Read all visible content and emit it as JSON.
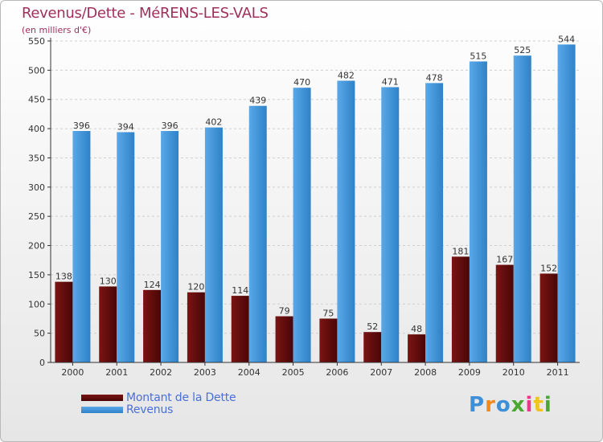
{
  "title": "Revenus/Dette - MéRENS-LES-VALS",
  "subtitle": "(en milliers d'€)",
  "logo": {
    "text": "Proxiti",
    "letter_colors": [
      "#3d8fd8",
      "#f08a1e",
      "#3d8fd8",
      "#4aa832",
      "#e83a8a",
      "#f0c41e",
      "#4aa832"
    ]
  },
  "colors": {
    "debt": "#7a1414",
    "debt_dark": "#4a0606",
    "revenue": "#5aa8e8",
    "revenue_dark": "#2e82c8",
    "title": "#a0305a",
    "legend_text": "#4a6fd6"
  },
  "chart_data": {
    "type": "bar",
    "title": "Revenus/Dette - MéRENS-LES-VALS",
    "subtitle": "(en milliers d'€)",
    "categories": [
      "2000",
      "2001",
      "2002",
      "2003",
      "2004",
      "2005",
      "2006",
      "2007",
      "2008",
      "2009",
      "2010",
      "2011"
    ],
    "series": [
      {
        "name": "Montant de la Dette",
        "values": [
          138,
          130,
          124,
          120,
          114,
          79,
          75,
          52,
          48,
          181,
          167,
          152
        ]
      },
      {
        "name": "Revenus",
        "values": [
          396,
          394,
          396,
          402,
          439,
          470,
          482,
          471,
          478,
          515,
          525,
          544
        ]
      }
    ],
    "ylim": [
      0,
      550
    ],
    "yticks": [
      0,
      50,
      100,
      150,
      200,
      250,
      300,
      350,
      400,
      450,
      500,
      550
    ],
    "grid": true,
    "legend_position": "bottom-left"
  }
}
